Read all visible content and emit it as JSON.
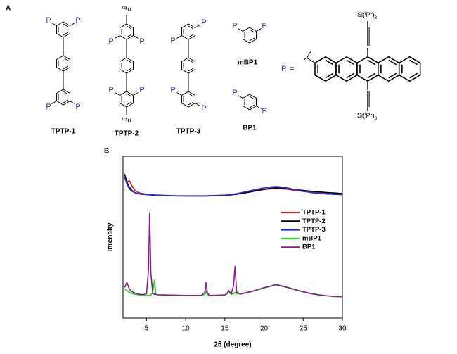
{
  "panel_a": {
    "label": "A",
    "molecules": [
      {
        "name": "TPTP-1",
        "p_labels": [
          "P",
          "P",
          "P",
          "P"
        ]
      },
      {
        "name": "TPTP-2",
        "p_labels": [
          "P",
          "P",
          "P",
          "P"
        ],
        "tbu": [
          [
            "t",
            "Bu"
          ],
          [
            "t",
            "Bu"
          ]
        ]
      },
      {
        "name": "TPTP-3",
        "p_labels": [
          "P",
          "P",
          "P",
          "P"
        ]
      },
      {
        "name": "mBP1",
        "p_labels": [
          "P",
          "P"
        ]
      },
      {
        "name": "BP1",
        "p_labels": [
          "P",
          "P"
        ]
      }
    ],
    "definition": {
      "symbol": "P",
      "equals": "=",
      "silyl": [
        [
          "Si(",
          "i",
          "Pr)",
          "3"
        ],
        [
          "Si(",
          "i",
          "Pr)",
          "3"
        ]
      ]
    }
  },
  "chart_data": {
    "type": "line",
    "panel_label": "B",
    "x_label": "2θ (degree)",
    "y_label": "Intensity",
    "x": [
      2.2,
      2.5,
      2.8,
      3.1,
      3.5,
      4,
      4.5,
      5,
      5.25,
      5.4,
      5.55,
      5.8,
      6.0,
      6.2,
      6.5,
      7,
      8,
      9,
      10,
      11,
      12,
      12.45,
      12.6,
      12.75,
      13,
      14,
      15,
      15.3,
      15.5,
      15.8,
      16.1,
      16.3,
      16.5,
      17,
      18,
      19,
      20,
      21,
      21.5,
      22,
      23,
      24,
      25,
      26,
      27,
      28,
      29,
      30
    ],
    "series": [
      {
        "name": "TPTP-1",
        "color": "#e8141b",
        "values": [
          86,
          84,
          85,
          82,
          79,
          77.5,
          77,
          76.5,
          76.4,
          76.3,
          76.2,
          76.1,
          76,
          76,
          75.9,
          75.8,
          75.6,
          75.5,
          75.4,
          75.4,
          75.4,
          75.4,
          75.4,
          75.4,
          75.5,
          75.6,
          75.8,
          75.9,
          76,
          76.1,
          76.3,
          76.4,
          76.5,
          76.9,
          77.7,
          78.6,
          79.4,
          80,
          80.2,
          80.1,
          79.6,
          78.9,
          78.3,
          77.8,
          77.3,
          76.9,
          76.5,
          76.2
        ]
      },
      {
        "name": "TPTP-2",
        "color": "#000000",
        "values": [
          89,
          84,
          81,
          79,
          77.5,
          76.8,
          76.5,
          76.3,
          76.2,
          76.1,
          76.1,
          76,
          76,
          75.9,
          75.9,
          75.8,
          75.6,
          75.5,
          75.5,
          75.5,
          75.5,
          75.5,
          75.5,
          75.5,
          75.6,
          75.7,
          75.9,
          76,
          76.1,
          76.2,
          76.4,
          76.5,
          76.6,
          77,
          77.8,
          78.8,
          79.6,
          80.3,
          80.5,
          80.4,
          80,
          79.4,
          78.9,
          78.4,
          78,
          77.6,
          77.3,
          77
        ]
      },
      {
        "name": "TPTP-3",
        "color": "#1f2fd8",
        "values": [
          87,
          83,
          80,
          78.5,
          77.5,
          76.9,
          76.6,
          76.4,
          76.3,
          76.2,
          76.2,
          76.1,
          76.1,
          76,
          76,
          75.9,
          75.7,
          75.6,
          75.6,
          75.6,
          75.6,
          75.6,
          75.6,
          75.6,
          75.7,
          75.8,
          76,
          76.1,
          76.2,
          76.4,
          76.6,
          76.7,
          76.9,
          77.4,
          78.4,
          79.5,
          80.5,
          81.1,
          81.3,
          81.1,
          80.4,
          79.4,
          78.4,
          77.6,
          77,
          76.7,
          76.5,
          76.3
        ]
      },
      {
        "name": "mBP1",
        "color": "#19e019",
        "values": [
          18,
          17,
          16,
          15.3,
          14.8,
          14.3,
          14,
          14,
          14,
          14.2,
          14.3,
          16,
          23.5,
          15,
          14.2,
          14.1,
          14,
          14,
          14,
          14,
          14,
          14.5,
          17,
          14.5,
          14,
          14,
          14.2,
          15,
          16.5,
          14.6,
          15,
          16,
          15,
          14.8,
          15.8,
          17.1,
          18.6,
          19.8,
          20.5,
          20,
          18.8,
          17.4,
          16.1,
          15,
          14.3,
          13.7,
          13.3,
          13.1
        ]
      },
      {
        "name": "BP1",
        "color": "#8a1a8e",
        "values": [
          19,
          22,
          18,
          16.5,
          15.5,
          14.8,
          14.5,
          15,
          30,
          65,
          28,
          15,
          14.8,
          14.6,
          14.4,
          14.3,
          14.2,
          14.1,
          14,
          14,
          14,
          16,
          22,
          16,
          14,
          14.1,
          14.3,
          15.5,
          17,
          14.8,
          20,
          32,
          16,
          15,
          16,
          17.3,
          18.8,
          20,
          20.8,
          20.2,
          19,
          17.6,
          16.3,
          15.2,
          14.4,
          13.8,
          13.4,
          13.2
        ]
      }
    ],
    "xlim": [
      2,
      30
    ],
    "ylim": [
      0,
      100
    ],
    "xticks": [
      5,
      10,
      15,
      20,
      25,
      30
    ],
    "legend": "right"
  }
}
